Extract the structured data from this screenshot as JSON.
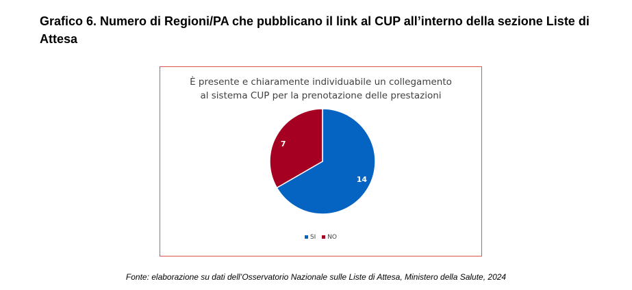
{
  "page": {
    "title": "Grafico 6. Numero di Regioni/PA che pubblicano il link al CUP all’interno della sezione Liste di Attesa",
    "source": "Fonte: elaborazione su dati dell’Osservatorio Nazionale sulle Liste di Attesa, Ministero della Salute, 2024"
  },
  "chart_data": {
    "type": "pie",
    "title_lines": [
      "È presente e chiaramente individuabile un collegamento",
      "al sistema CUP per la prenotazione delle prestazioni"
    ],
    "categories": [
      "SI",
      "NO"
    ],
    "values": [
      14,
      7
    ],
    "colors": [
      "#0563c1",
      "#a50021"
    ],
    "data_labels": [
      "14",
      "7"
    ],
    "legend_position": "bottom",
    "start_angle_deg": 0,
    "direction": "clockwise"
  }
}
